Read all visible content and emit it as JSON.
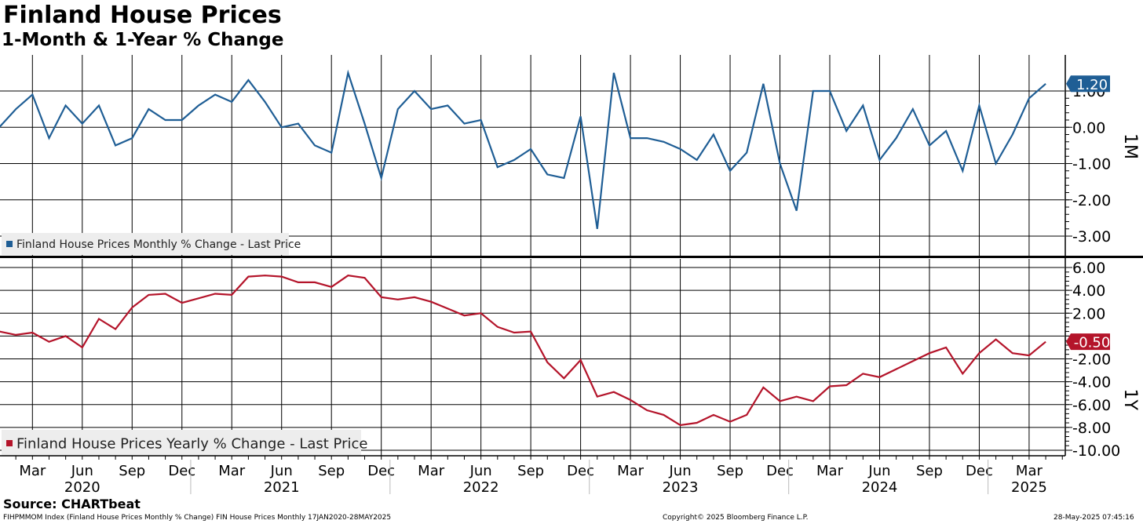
{
  "header": {
    "title": "Finland House Prices",
    "subtitle": "1-Month & 1-Year % Change"
  },
  "footer": {
    "source": "Source: CHARTbeat",
    "index_info": "FIHPMMOM Index (Finland House Prices Monthly % Change) FIN House Prices  Monthly 17JAN2020-28MAY2025",
    "copyright": "Copyright© 2025 Bloomberg Finance L.P.",
    "timestamp": "28-May-2025 07:45:16"
  },
  "colors": {
    "monthly": "#1f5e95",
    "yearly": "#b4142a",
    "grid": "#000000"
  },
  "chart_data": [
    {
      "type": "line",
      "panel": "top",
      "axis_label": "1M",
      "legend": "Finland House Prices Monthly % Change - Last Price",
      "legend_position": "bottom-left",
      "last_value_label": "1.20",
      "ylim": [
        -3.6,
        2.0
      ],
      "yticks": [
        1.0,
        0.0,
        -1.0,
        -2.0,
        -3.0
      ],
      "ytick_labels": [
        "1.00",
        "0.00",
        "-1.00",
        "-2.00",
        "-3.00"
      ],
      "grid": true,
      "start": "2020-01",
      "series": [
        {
          "name": "Finland House Prices Monthly % Change - Last Price",
          "values": [
            0.0,
            0.5,
            0.9,
            -0.3,
            0.6,
            0.1,
            0.6,
            -0.5,
            -0.3,
            0.5,
            0.2,
            0.2,
            0.6,
            0.9,
            0.7,
            1.3,
            0.7,
            0.0,
            0.1,
            -0.5,
            -0.7,
            1.5,
            0.1,
            -1.4,
            0.5,
            1.0,
            0.5,
            0.6,
            0.1,
            0.2,
            -1.1,
            -0.9,
            -0.6,
            -1.3,
            -1.4,
            0.3,
            -2.8,
            1.5,
            -0.3,
            -0.3,
            -0.4,
            -0.6,
            -0.9,
            -0.2,
            -1.2,
            -0.7,
            1.2,
            -1.0,
            -2.3,
            1.0,
            1.0,
            -0.1,
            0.6,
            -0.9,
            -0.3,
            0.5,
            -0.5,
            -0.1,
            -1.2,
            0.6,
            -1.0,
            -0.2,
            0.8,
            1.2
          ]
        }
      ]
    },
    {
      "type": "line",
      "panel": "bottom",
      "axis_label": "1Y",
      "legend": "Finland House Prices Yearly % Change - Last Price",
      "legend_position": "bottom-left",
      "last_value_label": "-0.50",
      "ylim": [
        -10.5,
        6.5
      ],
      "yticks": [
        6.0,
        4.0,
        2.0,
        0.0,
        -2.0,
        -4.0,
        -6.0,
        -8.0,
        -10.0
      ],
      "ytick_labels": [
        "6.00",
        "4.00",
        "2.00",
        "",
        "-2.00",
        "-4.00",
        "-6.00",
        "-8.00",
        "-10.00"
      ],
      "grid": true,
      "start": "2020-01",
      "series": [
        {
          "name": "Finland House Prices Yearly % Change - Last Price",
          "values": [
            0.4,
            0.1,
            0.3,
            -0.5,
            0.0,
            -1.0,
            1.5,
            0.6,
            2.5,
            3.6,
            3.7,
            2.9,
            3.3,
            3.7,
            3.6,
            5.2,
            5.3,
            5.2,
            4.7,
            4.7,
            4.3,
            5.3,
            5.1,
            3.4,
            3.2,
            3.4,
            3.0,
            2.4,
            1.8,
            2.0,
            0.8,
            0.3,
            0.4,
            -2.3,
            -3.7,
            -2.1,
            -5.3,
            -4.9,
            -5.6,
            -6.5,
            -6.9,
            -7.8,
            -7.6,
            -6.9,
            -7.5,
            -6.9,
            -4.5,
            -5.7,
            -5.3,
            -5.7,
            -4.4,
            -4.3,
            -3.3,
            -3.6,
            -2.9,
            -2.2,
            -1.5,
            -1.0,
            -3.3,
            -1.5,
            -0.3,
            -1.5,
            -1.7,
            -0.5
          ]
        }
      ]
    }
  ],
  "x_axis": {
    "months": [
      "Mar",
      "Jun",
      "Sep",
      "Dec",
      "Mar",
      "Jun",
      "Sep",
      "Dec",
      "Mar",
      "Jun",
      "Sep",
      "Dec",
      "Mar",
      "Jun",
      "Sep",
      "Dec",
      "Mar",
      "Jun",
      "Sep",
      "Dec",
      "Mar"
    ],
    "month_index": [
      2,
      5,
      8,
      11,
      14,
      17,
      20,
      23,
      26,
      29,
      32,
      35,
      38,
      41,
      44,
      47,
      50,
      53,
      56,
      59,
      62
    ],
    "years": [
      "2020",
      "2021",
      "2022",
      "2023",
      "2024",
      "2025"
    ],
    "year_index": [
      5,
      17,
      29,
      41,
      53,
      62
    ]
  }
}
